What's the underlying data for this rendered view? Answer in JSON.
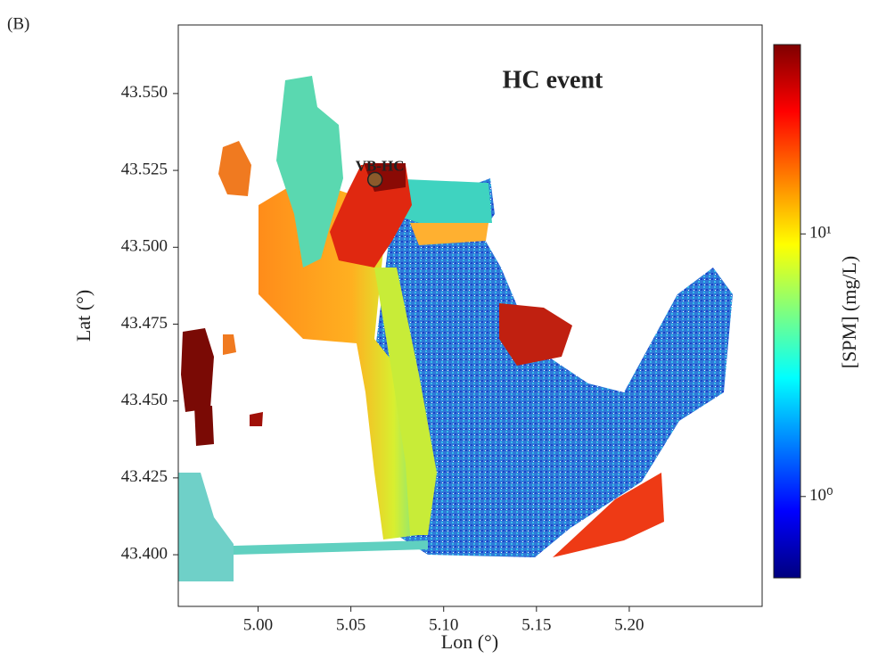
{
  "chart_data": {
    "type": "map",
    "panel_label": "(B)",
    "title": "HC event",
    "xlabel": "Lon (°)",
    "ylabel": "Lat (°)",
    "xlim": [
      4.957,
      5.2716
    ],
    "ylim": [
      43.3832,
      43.5723
    ],
    "xticks": [
      {
        "value": 5.0,
        "label": "5.00"
      },
      {
        "value": 5.05,
        "label": "5.05"
      },
      {
        "value": 5.1,
        "label": "5.10"
      },
      {
        "value": 5.15,
        "label": "5.15"
      },
      {
        "value": 5.2,
        "label": "5.20"
      }
    ],
    "yticks": [
      {
        "value": 43.55,
        "label": "43.550"
      },
      43.525,
      {
        "value": 43.5,
        "label": "43.500"
      },
      43.475,
      {
        "value": 43.45,
        "label": "43.450"
      },
      43.425,
      {
        "value": 43.4,
        "label": "43.400"
      }
    ],
    "station": {
      "name": "VB-HC",
      "lon": 5.063,
      "lat": 43.522,
      "color": "#8b5a2b"
    },
    "colorbar": {
      "label": "[SPM] (mg/L)",
      "scale": "log",
      "lim": [
        0.49,
        52.6
      ],
      "ticks": [
        {
          "value": 1,
          "label": "10⁰"
        },
        {
          "value": 10,
          "label": "10¹"
        }
      ],
      "colors": [
        "#00007f",
        "#0000ff",
        "#007fff",
        "#00ffff",
        "#7fff7f",
        "#ffff00",
        "#ff7f00",
        "#ff0000",
        "#7f0000"
      ]
    }
  }
}
